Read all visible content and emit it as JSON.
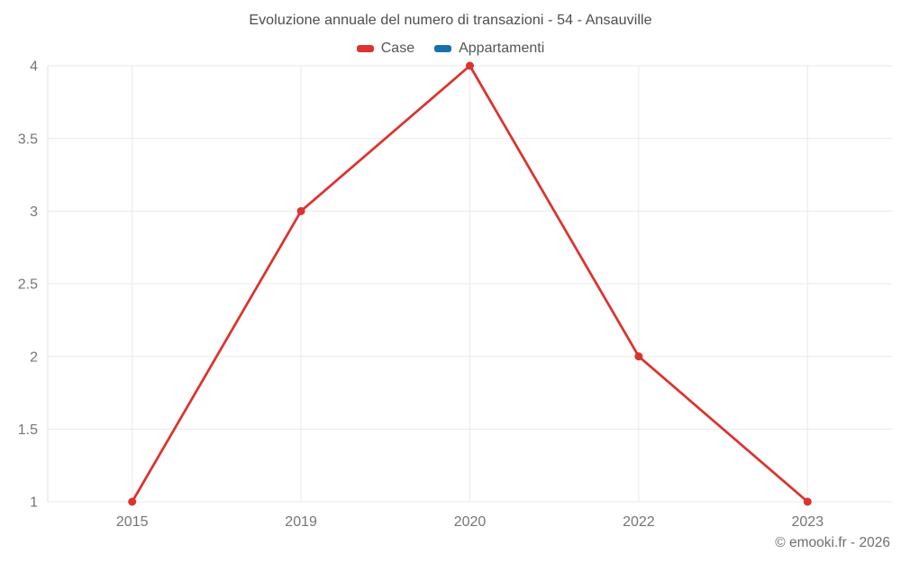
{
  "header": {
    "title": "Evoluzione annuale del numero di transazioni - 54 - Ansauville"
  },
  "legend": {
    "items": [
      {
        "label": "Case",
        "color": "#dc3330"
      },
      {
        "label": "Appartamenti",
        "color": "#1770aa"
      }
    ]
  },
  "chart_data": {
    "type": "line",
    "title": "Evoluzione annuale del numero di transazioni - 54 - Ansauville",
    "categories": [
      "2015",
      "2019",
      "2020",
      "2022",
      "2023"
    ],
    "series": [
      {
        "name": "Case",
        "color": "#dc3330",
        "values": [
          1,
          3,
          4,
          2,
          1
        ]
      },
      {
        "name": "Appartamenti",
        "color": "#1770aa",
        "values": []
      }
    ],
    "xlabel": "",
    "ylabel": "",
    "ylim": [
      1,
      4
    ],
    "y_ticks": [
      "1",
      "1.5",
      "2",
      "2.5",
      "3",
      "3.5",
      "4"
    ],
    "grid": true,
    "legend_position": "top"
  },
  "footer": {
    "copyright": "© emooki.fr - 2026"
  },
  "colors": {
    "background": "#ffffff",
    "grid": "#e9e9e9",
    "axis_line": "#e3e3e3",
    "axis_label": "#757575",
    "title_text": "#4d4d4d",
    "legend_text": "#555555",
    "copyright_text": "#6e6e6e"
  }
}
